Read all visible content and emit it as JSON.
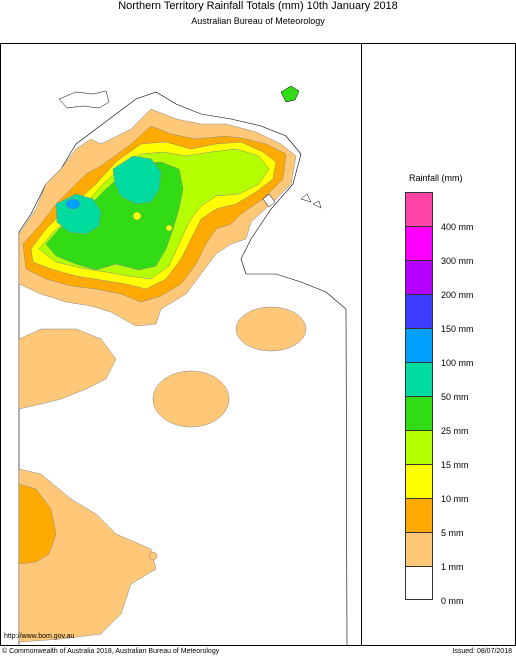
{
  "header": {
    "title": "Northern Territory Rainfall Totals (mm) 10th January 2018",
    "subtitle": "Australian Bureau of Meteorology"
  },
  "legend": {
    "title": "Rainfall (mm)",
    "colors": [
      "#ff44a8",
      "#ff00ff",
      "#b400ff",
      "#3c3cff",
      "#00a0ff",
      "#00dca0",
      "#32dc14",
      "#b4ff00",
      "#ffff00",
      "#ffaa00",
      "#ffc878",
      "#ffffff"
    ],
    "labels": [
      "400 mm",
      "300 mm",
      "200 mm",
      "150 mm",
      "100 mm",
      "50 mm",
      "25 mm",
      "15 mm",
      "10 mm",
      "5 mm",
      "1 mm",
      "0 mm"
    ]
  },
  "map": {
    "region": "Northern Territory",
    "colors": {
      "light_orange": "#ffc878",
      "orange": "#ffaa00",
      "yellow": "#ffff00",
      "lime": "#b4ff00",
      "green": "#32dc14",
      "teal": "#00dca0",
      "blue": "#00a0ff",
      "sea": "#ffffff"
    }
  },
  "footer": {
    "url": "http://www.bom.gov.au",
    "copyright": "© Commonwealth of Australia 2018, Australian Bureau of Meteorology",
    "issued": "Issued: 08/07/2018"
  }
}
